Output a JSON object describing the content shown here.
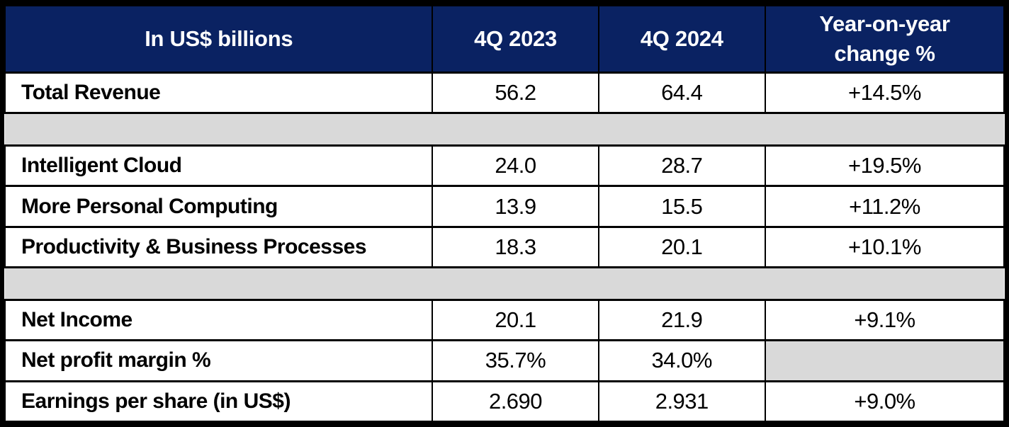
{
  "table": {
    "header": {
      "label_col": "In US$ billions",
      "q4_2023_col": "4Q 2023",
      "q4_2024_col": "4Q 2024",
      "yoy_col": "Year-on-year change %"
    },
    "rows": [
      {
        "label": "Total Revenue",
        "q4_2023": "56.2",
        "q4_2024": "64.4",
        "yoy": "+14.5%"
      },
      {
        "label": "Intelligent Cloud",
        "q4_2023": "24.0",
        "q4_2024": "28.7",
        "yoy": "+19.5%"
      },
      {
        "label": "More Personal Computing",
        "q4_2023": "13.9",
        "q4_2024": "15.5",
        "yoy": "+11.2%"
      },
      {
        "label": "Productivity & Business Processes",
        "q4_2023": "18.3",
        "q4_2024": "20.1",
        "yoy": "+10.1%"
      },
      {
        "label": "Net Income",
        "q4_2023": "20.1",
        "q4_2024": "21.9",
        "yoy": "+9.1%"
      },
      {
        "label": "Net profit margin %",
        "q4_2023": "35.7%",
        "q4_2024": "34.0%",
        "yoy": ""
      },
      {
        "label": "Earnings per share (in US$)",
        "q4_2023": "2.690",
        "q4_2024": "2.931",
        "yoy": "+9.0%"
      }
    ]
  },
  "colors": {
    "header_bg": "#0a2262",
    "header_text": "#ffffff",
    "spacer_bg": "#d9d9d9",
    "border": "#000000",
    "body_text": "#000000"
  },
  "chart_data": {
    "type": "table",
    "title": "In US$ billions",
    "columns": [
      "In US$ billions",
      "4Q 2023",
      "4Q 2024",
      "Year-on-year change %"
    ],
    "rows": [
      [
        "Total Revenue",
        56.2,
        64.4,
        "+14.5%"
      ],
      [
        "Intelligent Cloud",
        24.0,
        28.7,
        "+19.5%"
      ],
      [
        "More Personal Computing",
        13.9,
        15.5,
        "+11.2%"
      ],
      [
        "Productivity & Business Processes",
        18.3,
        20.1,
        "+10.1%"
      ],
      [
        "Net Income",
        20.1,
        21.9,
        "+9.1%"
      ],
      [
        "Net profit margin %",
        "35.7%",
        "34.0%",
        null
      ],
      [
        "Earnings per share (in US$)",
        2.69,
        2.931,
        "+9.0%"
      ]
    ],
    "notes": "Gray full-width spacer bands appear after row 1 and row 4; YoY cell for Net profit margin % is blank gray."
  }
}
